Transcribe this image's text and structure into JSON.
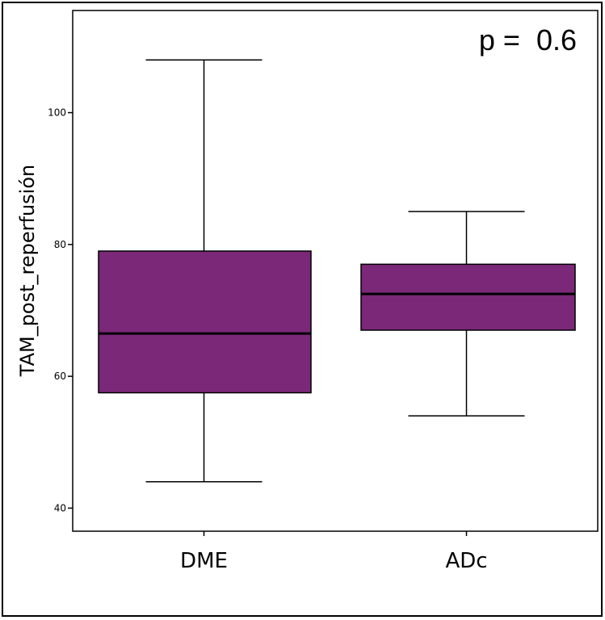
{
  "chart_data": {
    "type": "boxplot",
    "categories": [
      "DME",
      "ADc"
    ],
    "boxes": [
      {
        "category": "DME",
        "min": 44,
        "q1": 57.5,
        "median": 66.5,
        "q3": 79,
        "max": 108
      },
      {
        "category": "ADc",
        "min": 54,
        "q1": 67,
        "median": 72.5,
        "q3": 77,
        "max": 85
      }
    ],
    "ylabel": "TAM_post_reperfusión",
    "yticks": [
      40,
      60,
      80,
      100
    ],
    "ylim": [
      36.5,
      115.5
    ],
    "annotation": "p =  0.6",
    "box_color": "#7b2878",
    "grid": false
  }
}
